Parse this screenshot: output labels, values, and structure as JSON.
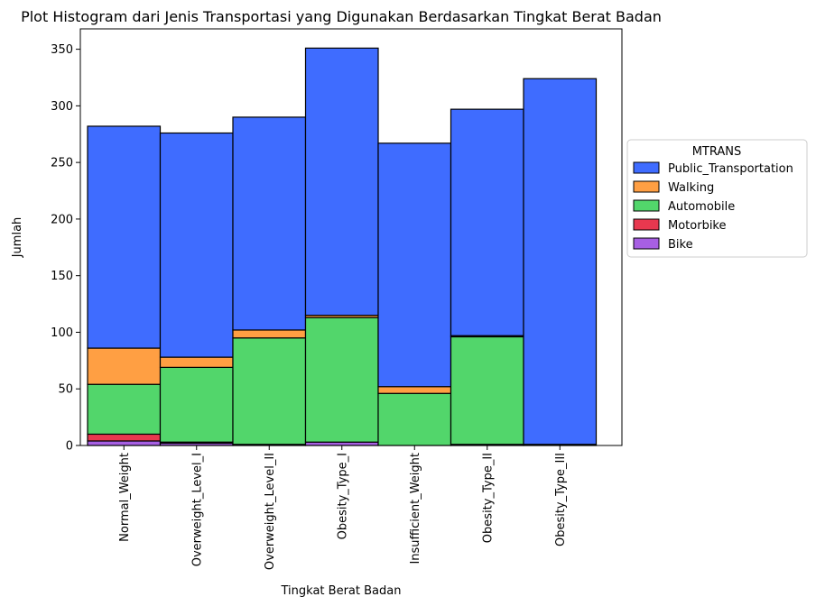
{
  "chart_data": {
    "type": "bar",
    "stacked": true,
    "title": "Plot Histogram dari Jenis Transportasi yang Digunakan Berdasarkan Tingkat Berat Badan",
    "xlabel": "Tingkat Berat Badan",
    "ylabel": "Jumlah",
    "ylim": [
      0,
      368
    ],
    "yticks": [
      0,
      50,
      100,
      150,
      200,
      250,
      300,
      350
    ],
    "grid": false,
    "categories": [
      "Normal_Weight",
      "Overweight_Level_I",
      "Overweight_Level_II",
      "Obesity_Type_I",
      "Insufficient_Weight",
      "Obesity_Type_II",
      "Obesity_Type_III"
    ],
    "legend": {
      "title": "MTRANS",
      "position": "center-right outside"
    },
    "series": [
      {
        "name": "Bike",
        "color": "#a75fe3",
        "values": [
          4,
          2,
          1,
          3,
          0,
          1,
          0
        ]
      },
      {
        "name": "Motorbike",
        "color": "#e8384f",
        "values": [
          6,
          1,
          0,
          0,
          0,
          0,
          0
        ]
      },
      {
        "name": "Automobile",
        "color": "#52d66b",
        "values": [
          44,
          66,
          94,
          110,
          46,
          95,
          1
        ]
      },
      {
        "name": "Walking",
        "color": "#ff9f43",
        "values": [
          32,
          9,
          7,
          2,
          6,
          1,
          0
        ]
      },
      {
        "name": "Public_Transportation",
        "color": "#3f6cff",
        "values": [
          196,
          198,
          188,
          236,
          215,
          200,
          323
        ]
      }
    ],
    "legend_order": [
      "Public_Transportation",
      "Walking",
      "Automobile",
      "Motorbike",
      "Bike"
    ]
  }
}
